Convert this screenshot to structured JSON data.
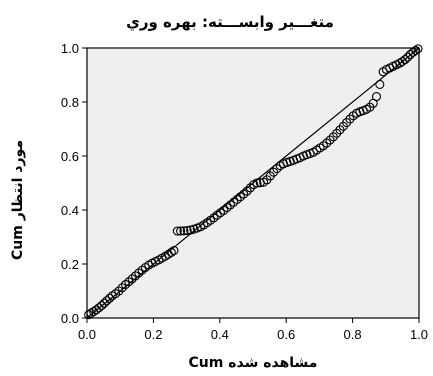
{
  "chart_data": {
    "type": "scatter",
    "title": "متغـــير وابســـته: بهره وري",
    "xlabel": "Cum مشاهده شده",
    "ylabel": "Cum مورد انتظار",
    "xlim": [
      0.0,
      1.0
    ],
    "ylim": [
      0.0,
      1.0
    ],
    "x_ticks": [
      "0.0",
      "0.2",
      "0.4",
      "0.6",
      "0.8",
      "1.0"
    ],
    "y_ticks": [
      "0.0",
      "0.2",
      "0.4",
      "0.6",
      "0.8",
      "1.0"
    ],
    "grid": false,
    "legend": "none",
    "plot_background": "#efefef",
    "marker": "open-circle",
    "reference_line": {
      "from": [
        0.0,
        0.0
      ],
      "to": [
        1.0,
        1.0
      ]
    },
    "series": [
      {
        "points": [
          [
            0.005,
            0.012
          ],
          [
            0.012,
            0.018
          ],
          [
            0.02,
            0.024
          ],
          [
            0.028,
            0.03
          ],
          [
            0.036,
            0.038
          ],
          [
            0.044,
            0.046
          ],
          [
            0.052,
            0.055
          ],
          [
            0.06,
            0.064
          ],
          [
            0.068,
            0.073
          ],
          [
            0.076,
            0.082
          ],
          [
            0.086,
            0.09
          ],
          [
            0.096,
            0.1
          ],
          [
            0.106,
            0.112
          ],
          [
            0.116,
            0.124
          ],
          [
            0.126,
            0.134
          ],
          [
            0.136,
            0.145
          ],
          [
            0.146,
            0.156
          ],
          [
            0.156,
            0.167
          ],
          [
            0.166,
            0.177
          ],
          [
            0.176,
            0.187
          ],
          [
            0.186,
            0.196
          ],
          [
            0.196,
            0.203
          ],
          [
            0.206,
            0.209
          ],
          [
            0.216,
            0.215
          ],
          [
            0.226,
            0.222
          ],
          [
            0.236,
            0.229
          ],
          [
            0.245,
            0.236
          ],
          [
            0.254,
            0.243
          ],
          [
            0.262,
            0.25
          ],
          [
            0.272,
            0.322
          ],
          [
            0.282,
            0.322
          ],
          [
            0.292,
            0.323
          ],
          [
            0.302,
            0.324
          ],
          [
            0.312,
            0.326
          ],
          [
            0.322,
            0.329
          ],
          [
            0.332,
            0.333
          ],
          [
            0.342,
            0.338
          ],
          [
            0.352,
            0.345
          ],
          [
            0.362,
            0.353
          ],
          [
            0.372,
            0.362
          ],
          [
            0.382,
            0.371
          ],
          [
            0.392,
            0.381
          ],
          [
            0.402,
            0.39
          ],
          [
            0.412,
            0.399
          ],
          [
            0.422,
            0.409
          ],
          [
            0.432,
            0.419
          ],
          [
            0.442,
            0.429
          ],
          [
            0.452,
            0.439
          ],
          [
            0.462,
            0.449
          ],
          [
            0.472,
            0.459
          ],
          [
            0.482,
            0.47
          ],
          [
            0.492,
            0.482
          ],
          [
            0.502,
            0.494
          ],
          [
            0.512,
            0.5
          ],
          [
            0.522,
            0.501
          ],
          [
            0.532,
            0.503
          ],
          [
            0.542,
            0.512
          ],
          [
            0.552,
            0.526
          ],
          [
            0.562,
            0.54
          ],
          [
            0.572,
            0.553
          ],
          [
            0.582,
            0.564
          ],
          [
            0.592,
            0.571
          ],
          [
            0.602,
            0.576
          ],
          [
            0.612,
            0.58
          ],
          [
            0.622,
            0.584
          ],
          [
            0.632,
            0.589
          ],
          [
            0.642,
            0.594
          ],
          [
            0.652,
            0.6
          ],
          [
            0.662,
            0.605
          ],
          [
            0.672,
            0.609
          ],
          [
            0.682,
            0.614
          ],
          [
            0.692,
            0.622
          ],
          [
            0.702,
            0.63
          ],
          [
            0.712,
            0.638
          ],
          [
            0.722,
            0.648
          ],
          [
            0.732,
            0.659
          ],
          [
            0.742,
            0.671
          ],
          [
            0.752,
            0.684
          ],
          [
            0.762,
            0.697
          ],
          [
            0.772,
            0.71
          ],
          [
            0.782,
            0.724
          ],
          [
            0.792,
            0.737
          ],
          [
            0.802,
            0.749
          ],
          [
            0.812,
            0.758
          ],
          [
            0.822,
            0.764
          ],
          [
            0.832,
            0.768
          ],
          [
            0.842,
            0.773
          ],
          [
            0.852,
            0.781
          ],
          [
            0.862,
            0.795
          ],
          [
            0.872,
            0.82
          ],
          [
            0.882,
            0.865
          ],
          [
            0.892,
            0.912
          ],
          [
            0.902,
            0.92
          ],
          [
            0.912,
            0.926
          ],
          [
            0.922,
            0.932
          ],
          [
            0.932,
            0.938
          ],
          [
            0.942,
            0.944
          ],
          [
            0.95,
            0.95
          ],
          [
            0.958,
            0.957
          ],
          [
            0.966,
            0.966
          ],
          [
            0.974,
            0.976
          ],
          [
            0.982,
            0.984
          ],
          [
            0.99,
            0.991
          ],
          [
            0.997,
            0.997
          ]
        ]
      }
    ]
  }
}
